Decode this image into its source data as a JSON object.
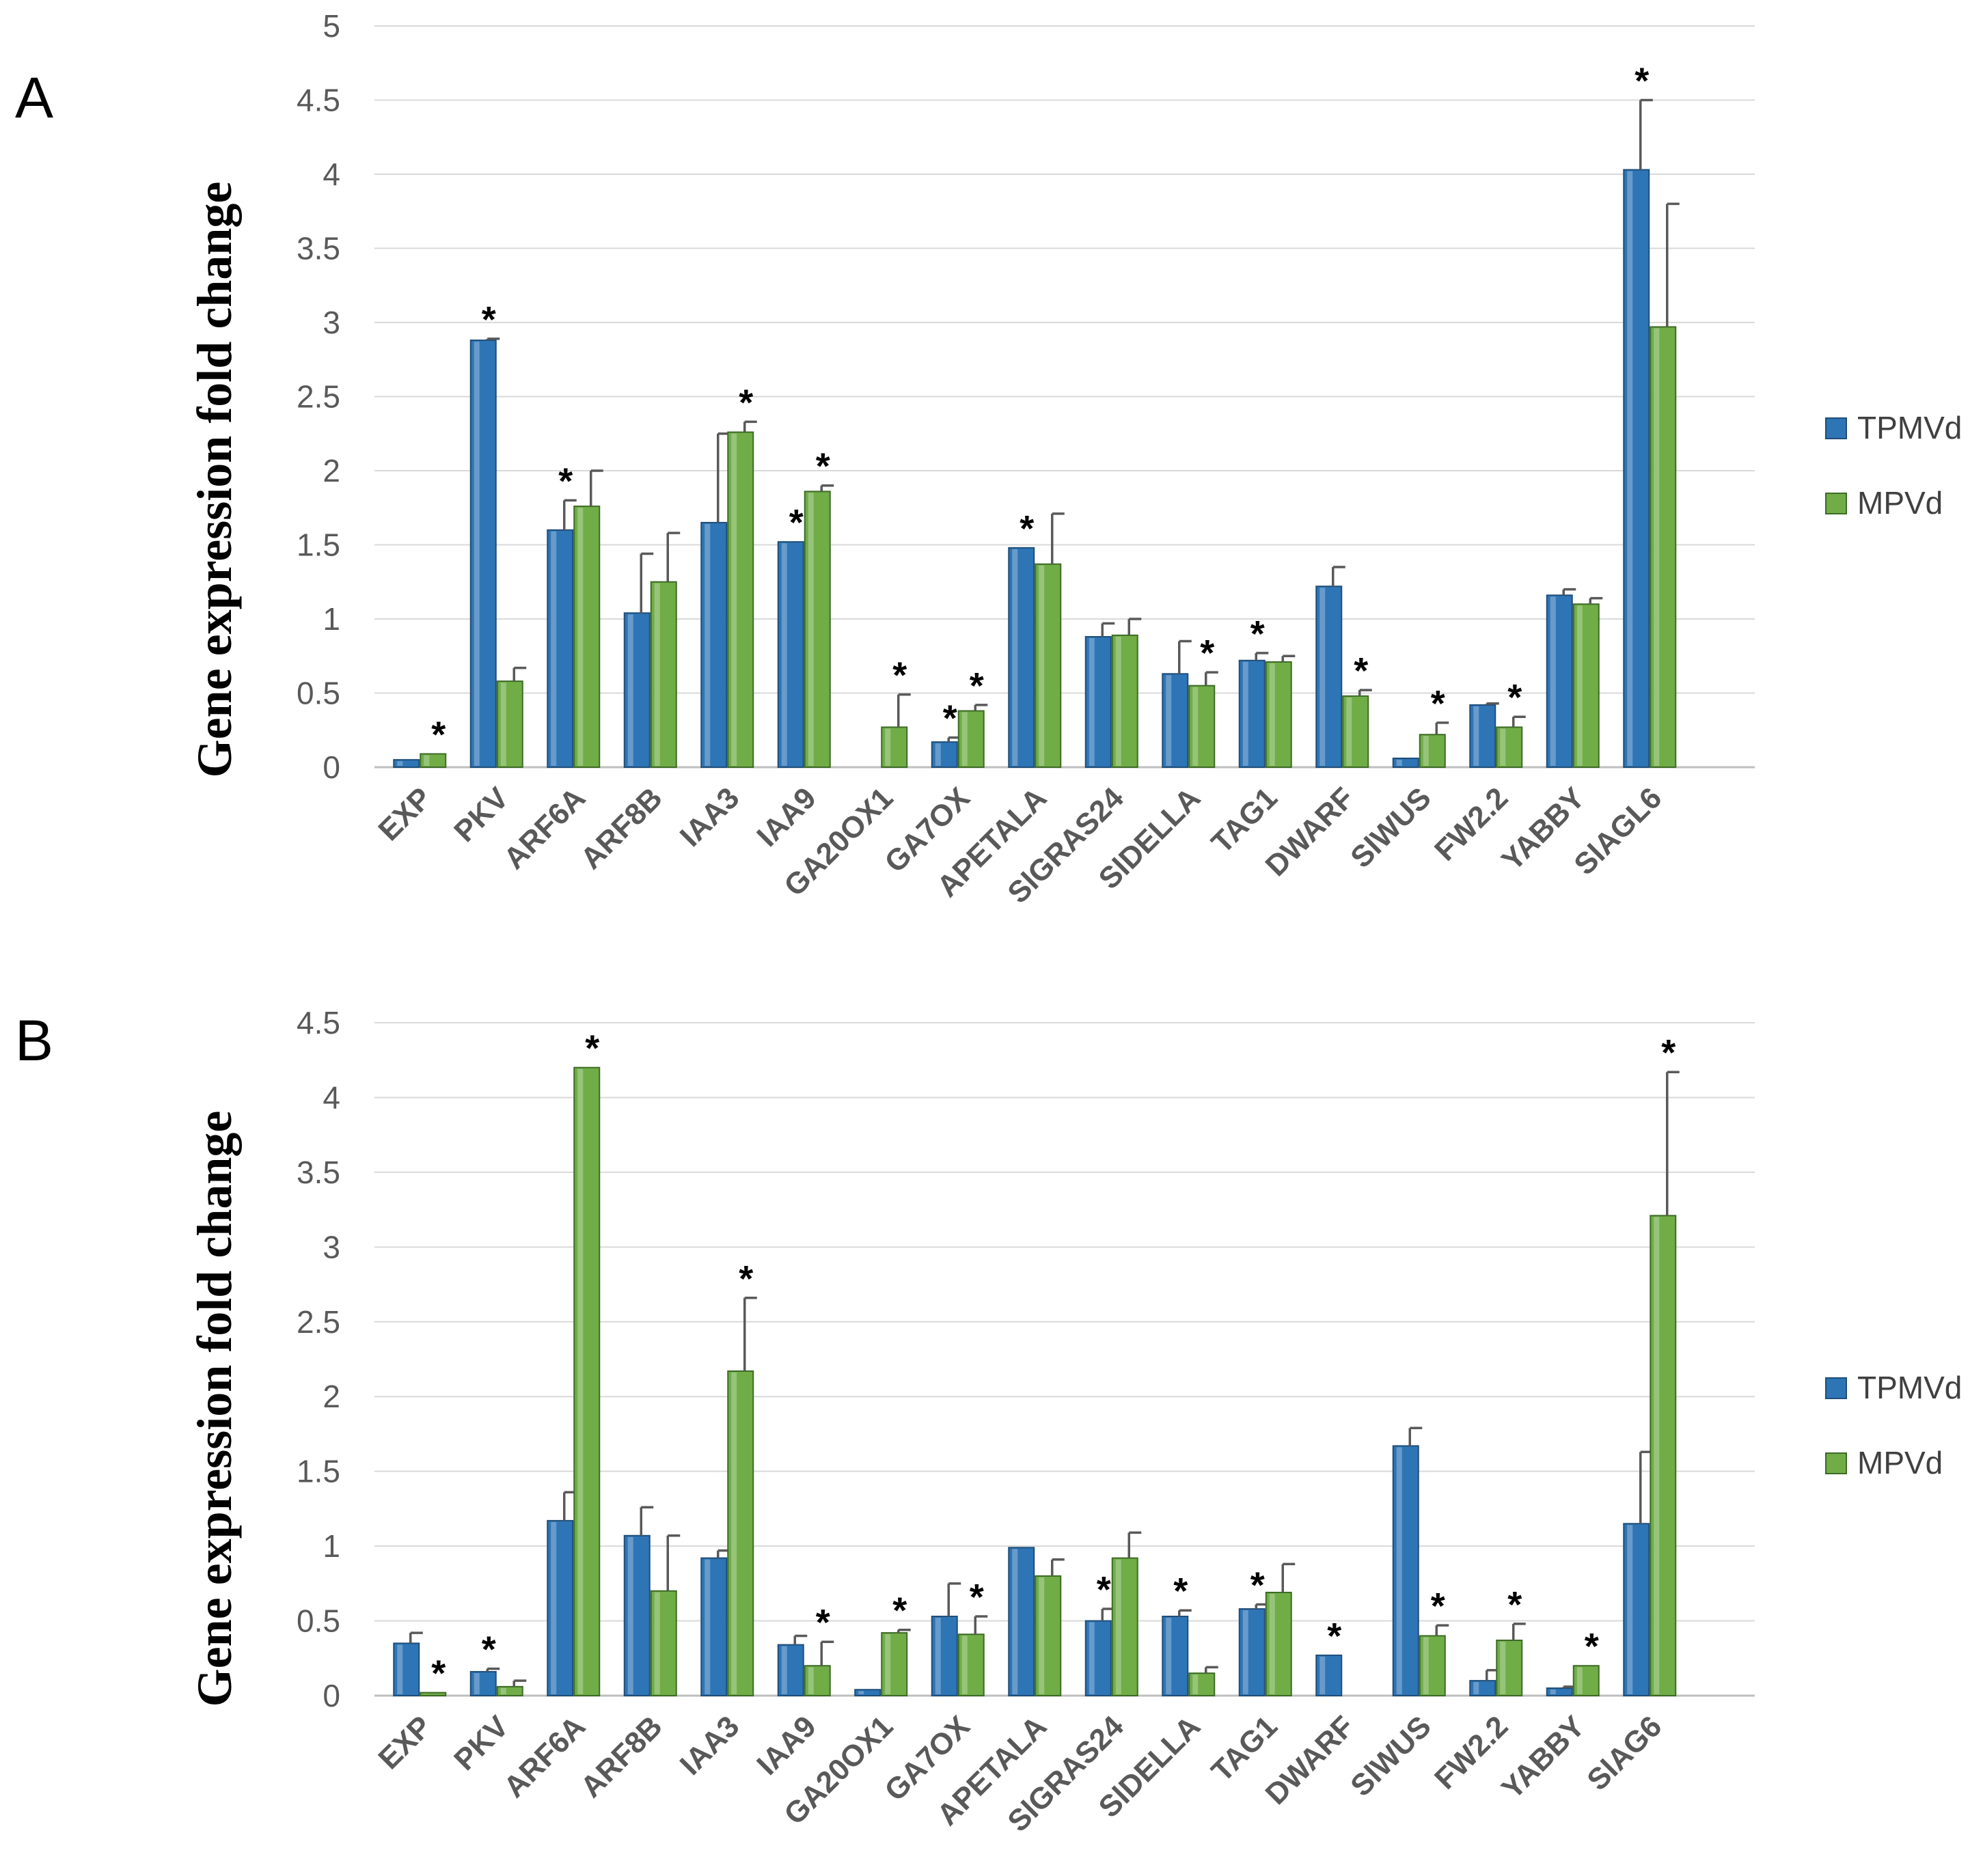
{
  "colors": {
    "TPMVd": "#2e75b6",
    "MPVd": "#70ad47",
    "TPMVd_dark": "#1f4e79",
    "MPVd_dark": "#3d6b25"
  },
  "chart_data": [
    {
      "type": "bar",
      "panel": "A",
      "ylabel": "Gene expression fold change",
      "ylim": [
        0,
        5
      ],
      "yticks": [
        "0",
        "0.5",
        "1",
        "1.5",
        "2",
        "2.5",
        "3",
        "3.5",
        "4",
        "4.5",
        "5"
      ],
      "grid": true,
      "legend_position": "right",
      "categories": [
        "EXP",
        "PKV",
        "ARF6A",
        "ARF8B",
        "IAA3",
        "IAA9",
        "GA20OX1",
        "GA7OX",
        "APETALA",
        "SlGRAS24",
        "SlDELLA",
        "TAG1",
        "DWARF",
        "SlWUS",
        "FW2.2",
        "YABBY",
        "SlAGL6"
      ],
      "series": [
        {
          "name": "TPMVd",
          "values": [
            0.05,
            2.88,
            1.6,
            1.04,
            1.65,
            1.52,
            0,
            0.17,
            1.48,
            0.88,
            0.63,
            0.72,
            1.22,
            0.06,
            0.42,
            1.16,
            4.03
          ],
          "errors": [
            0,
            0.01,
            0.2,
            0.4,
            0.6,
            0,
            0,
            0.03,
            0,
            0.09,
            0.22,
            0.05,
            0.13,
            0,
            0.01,
            0.04,
            0.47
          ],
          "significant": [
            false,
            true,
            true,
            false,
            false,
            true,
            false,
            true,
            true,
            false,
            false,
            true,
            false,
            false,
            false,
            false,
            true
          ]
        },
        {
          "name": "MPVd",
          "values": [
            0.09,
            0.58,
            1.76,
            1.25,
            2.26,
            1.86,
            0.27,
            0.38,
            1.37,
            0.89,
            0.55,
            0.71,
            0.48,
            0.22,
            0.27,
            1.1,
            2.97
          ],
          "errors": [
            0,
            0.09,
            0.24,
            0.33,
            0.07,
            0.04,
            0.22,
            0.04,
            0.34,
            0.11,
            0.09,
            0.04,
            0.04,
            0.08,
            0.07,
            0.04,
            0.83
          ],
          "significant": [
            true,
            false,
            false,
            false,
            true,
            true,
            true,
            true,
            false,
            false,
            true,
            false,
            true,
            true,
            true,
            false,
            false
          ]
        }
      ]
    },
    {
      "type": "bar",
      "panel": "B",
      "ylabel": "Gene expression fold change",
      "ylim": [
        0,
        4.5
      ],
      "yticks": [
        "0",
        "0.5",
        "1",
        "1.5",
        "2",
        "2.5",
        "3",
        "3.5",
        "4",
        "4.5"
      ],
      "grid": true,
      "legend_position": "right",
      "categories": [
        "EXP",
        "PKV",
        "ARF6A",
        "ARF8B",
        "IAA3",
        "IAA9",
        "GA20OX1",
        "GA7OX",
        "APETALA",
        "SlGRAS24",
        "SlDELLA",
        "TAG1",
        "DWARF",
        "SlWUS",
        "FW2.2",
        "YABBY",
        "SlAG6"
      ],
      "series": [
        {
          "name": "TPMVd",
          "values": [
            0.35,
            0.16,
            1.17,
            1.07,
            0.92,
            0.34,
            0.04,
            0.53,
            0.99,
            0.5,
            0.53,
            0.58,
            0.27,
            1.67,
            0.1,
            0.05,
            1.15
          ],
          "errors": [
            0.07,
            0.02,
            0.19,
            0.19,
            0.05,
            0.06,
            0,
            0.22,
            0,
            0.08,
            0.04,
            0.03,
            0,
            0.12,
            0.07,
            0.01,
            0.48
          ],
          "significant": [
            false,
            true,
            false,
            false,
            false,
            false,
            false,
            false,
            false,
            true,
            true,
            true,
            true,
            false,
            false,
            false,
            false
          ]
        },
        {
          "name": "MPVd",
          "values": [
            0.02,
            0.06,
            4.2,
            0.7,
            2.17,
            0.2,
            0.42,
            0.41,
            0.8,
            0.92,
            0.15,
            0.69,
            0,
            0.4,
            0.37,
            0.2,
            3.21
          ],
          "errors": [
            0,
            0.04,
            0,
            0.37,
            0.49,
            0.16,
            0.02,
            0.12,
            0.11,
            0.17,
            0.04,
            0.19,
            0,
            0.07,
            0.11,
            0,
            0.96
          ],
          "significant": [
            true,
            false,
            true,
            false,
            true,
            true,
            true,
            true,
            false,
            false,
            false,
            false,
            false,
            true,
            true,
            true,
            true
          ]
        }
      ]
    }
  ],
  "star_symbol": "*"
}
